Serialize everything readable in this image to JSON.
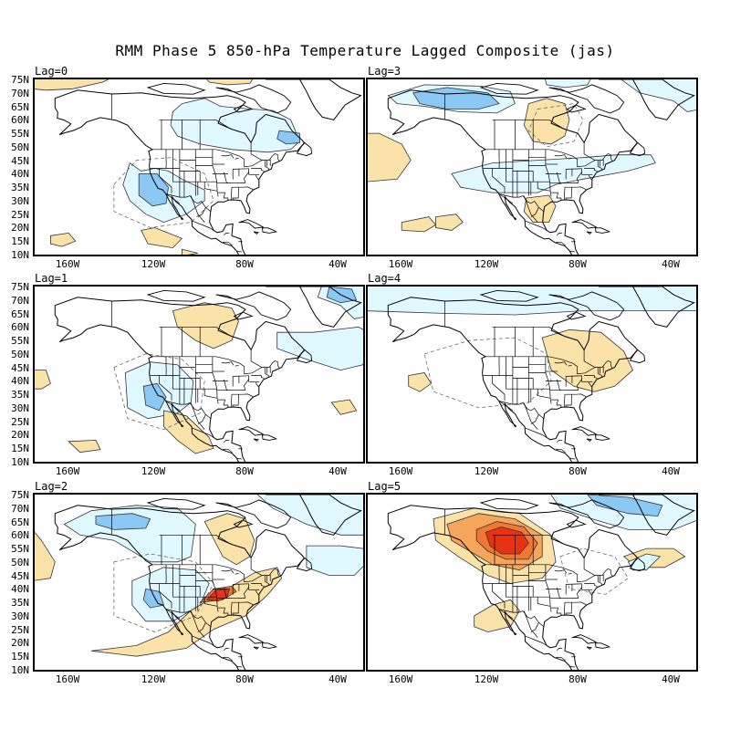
{
  "title": "RMM Phase 5 850-hPa Temperature Lagged Composite (jas)",
  "lat_labels": [
    "75N",
    "70N",
    "65N",
    "60N",
    "55N",
    "50N",
    "45N",
    "40N",
    "35N",
    "30N",
    "25N",
    "20N",
    "15N",
    "10N"
  ],
  "lon_labels": [
    "160W",
    "120W",
    "80W",
    "40W"
  ],
  "colors": {
    "cold_light": "#e0f8ff",
    "cold_mid": "#8cc8f5",
    "cold_dark": "#4a8ee0",
    "warm_light": "#fbe2a8",
    "warm_mid": "#f5a55c",
    "warm_dark": "#f07832",
    "warm_strong": "#e83214"
  },
  "panels": [
    {
      "id": "lag0",
      "label": "Lag=0"
    },
    {
      "id": "lag3",
      "label": "Lag=3"
    },
    {
      "id": "lag1",
      "label": "Lag=1"
    },
    {
      "id": "lag4",
      "label": "Lag=4"
    },
    {
      "id": "lag2",
      "label": "Lag=2"
    },
    {
      "id": "lag5",
      "label": "Lag=5"
    }
  ]
}
